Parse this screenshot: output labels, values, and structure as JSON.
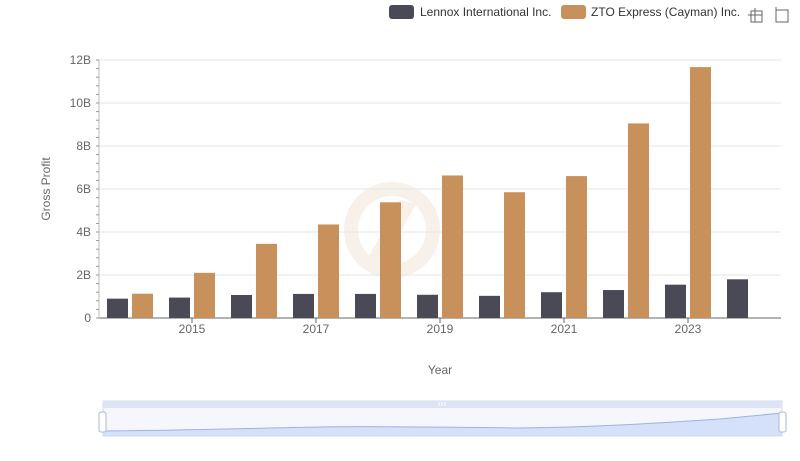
{
  "chart_data": {
    "type": "bar",
    "categories": [
      "2014",
      "2015",
      "2016",
      "2017",
      "2018",
      "2019",
      "2020",
      "2021",
      "2022",
      "2023",
      "2024"
    ],
    "x_tick_labels": [
      "2015",
      "2017",
      "2019",
      "2021",
      "2023"
    ],
    "y_tick_labels": [
      "0",
      "2B",
      "4B",
      "6B",
      "8B",
      "10B",
      "12B"
    ],
    "series": [
      {
        "name": "Lennox International Inc.",
        "color": "#4a4a56",
        "values": [
          0.9,
          0.95,
          1.07,
          1.12,
          1.12,
          1.08,
          1.03,
          1.2,
          1.3,
          1.55,
          1.8
        ]
      },
      {
        "name": "ZTO Express (Cayman) Inc.",
        "color": "#c8905a",
        "values": [
          1.13,
          2.1,
          3.45,
          4.35,
          5.38,
          6.63,
          5.85,
          6.6,
          9.05,
          11.67,
          null
        ]
      }
    ],
    "value_unit": "billions",
    "xlabel": "Year",
    "ylabel": "Gross Profit",
    "ylim": [
      0,
      12
    ],
    "legend_position": "top-right"
  }
}
